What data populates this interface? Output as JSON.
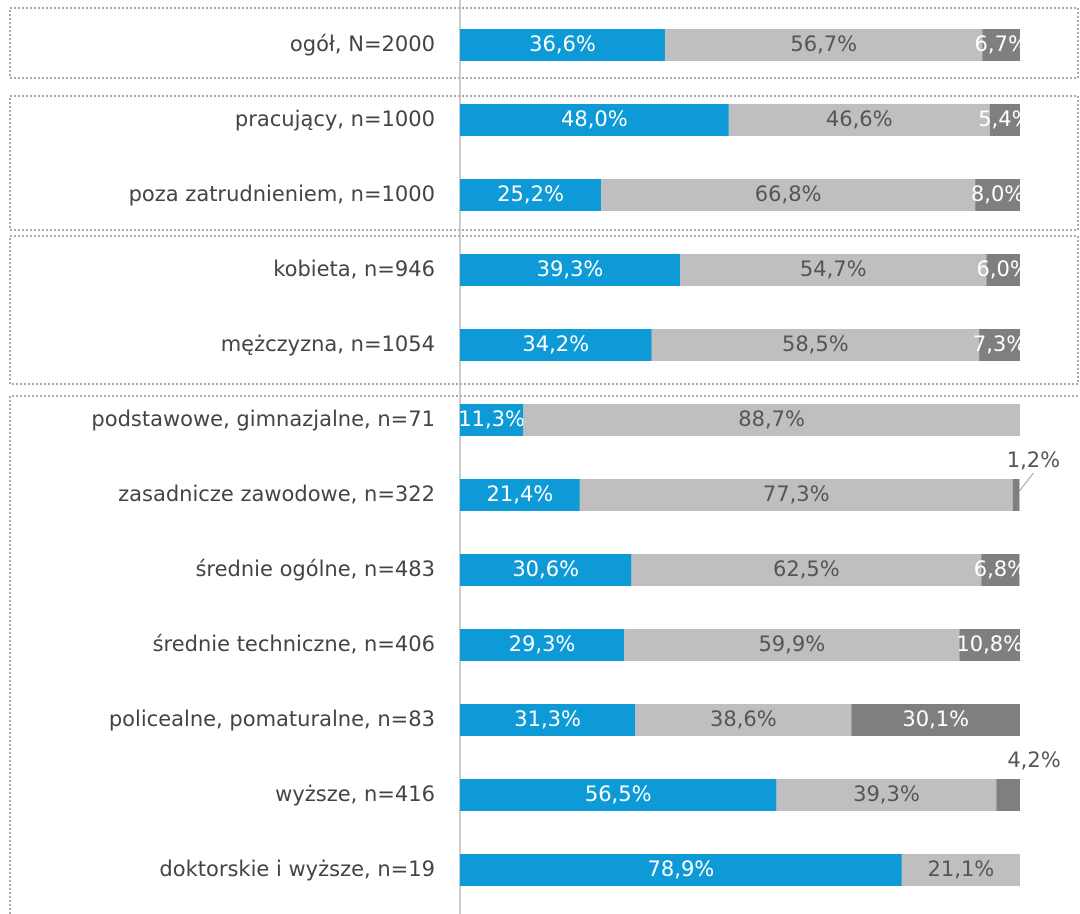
{
  "chart_data": {
    "type": "bar",
    "orientation": "horizontal",
    "stacked": true,
    "categories": [
      "ogół, N=2000",
      "pracujący, n=1000",
      "poza zatrudnieniem, n=1000",
      "kobieta, n=946",
      "mężczyzna, n=1054",
      "podstawowe, gimnazjalne, n=71",
      "zasadnicze zawodowe, n=322",
      "średnie ogólne, n=483",
      "średnie techniczne, n=406",
      "policealne, pomaturalne, n=83",
      "wyższe, n=416",
      "doktorskie i wyższe, n=19"
    ],
    "xlim": [
      0,
      100
    ],
    "series": [
      {
        "color": "#0e9ad7",
        "values": [
          36.6,
          48.0,
          25.2,
          39.3,
          34.2,
          11.3,
          21.4,
          30.6,
          29.3,
          31.3,
          56.5,
          78.9
        ],
        "value_labels": [
          "36,6%",
          "48,0%",
          "25,2%",
          "39,3%",
          "34,2%",
          "11,3%",
          "21,4%",
          "30,6%",
          "29,3%",
          "31,3%",
          "56,5%",
          "78,9%"
        ]
      },
      {
        "color": "#bfbfbf",
        "values": [
          56.7,
          46.6,
          66.8,
          54.7,
          58.5,
          88.7,
          77.3,
          62.5,
          59.9,
          38.6,
          39.3,
          21.1
        ],
        "value_labels": [
          "56,7%",
          "46,6%",
          "66,8%",
          "54,7%",
          "58,5%",
          "88,7%",
          "77,3%",
          "62,5%",
          "59,9%",
          "38,6%",
          "39,3%",
          "21,1%"
        ]
      },
      {
        "color": "#7f7f7f",
        "values": [
          6.7,
          5.4,
          8.0,
          6.0,
          7.3,
          null,
          1.2,
          6.8,
          10.8,
          30.1,
          4.2,
          null
        ],
        "value_labels": [
          "6,7%",
          "5,4%",
          "8,0%",
          "6,0%",
          "7,3%",
          null,
          "1,2%",
          "6,8%",
          "10,8%",
          "30,1%",
          "4,2%",
          null
        ]
      }
    ]
  }
}
